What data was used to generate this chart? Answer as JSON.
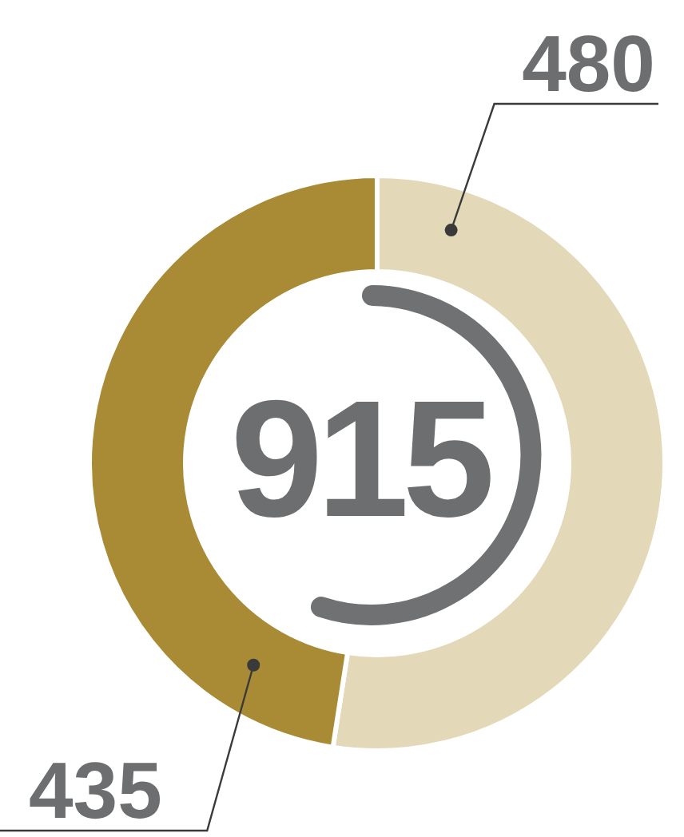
{
  "chart_data": {
    "type": "donut",
    "categories": [
      null,
      null
    ],
    "values": [
      480,
      435
    ],
    "colors": [
      "#e3d8b8",
      "#a98a35"
    ],
    "data_labels": true,
    "legend": false,
    "annotations": [
      "915"
    ]
  }
}
